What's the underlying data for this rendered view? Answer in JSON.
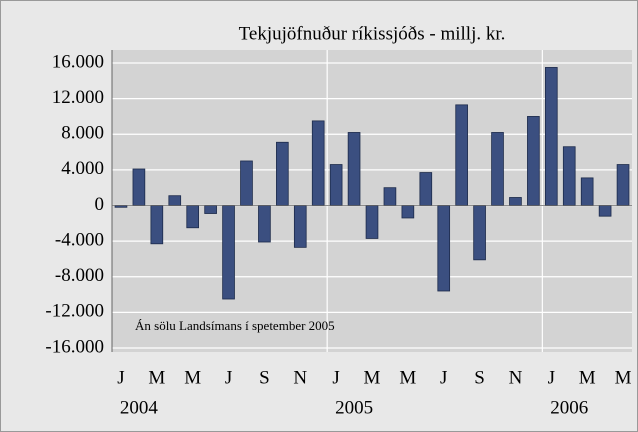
{
  "chart_data": {
    "type": "bar",
    "title": "Tekjujöfnuður ríkissjóðs - millj. kr.",
    "annotation": "Án sölu Landsímans í spetember 2005",
    "categories": [
      "J",
      null,
      "M",
      null,
      "M",
      null,
      "J",
      null,
      "S",
      null,
      "N",
      null,
      "J",
      null,
      "M",
      null,
      "M",
      null,
      "J",
      null,
      "S",
      null,
      "N",
      null,
      "J",
      null,
      "M",
      null,
      "M"
    ],
    "year_labels": [
      "2004",
      "2005",
      "2006"
    ],
    "values": [
      -200,
      4100,
      -4300,
      1100,
      -2500,
      -900,
      -10500,
      5000,
      -4100,
      7100,
      -4700,
      9500,
      4600,
      8200,
      -3700,
      2000,
      -1400,
      3700,
      -9600,
      11300,
      -6100,
      8200,
      900,
      10000,
      15500,
      6600,
      3100,
      -1200,
      4600
    ],
    "color": "#3b4f80",
    "ylim": [
      -16000,
      16000
    ],
    "yticks": [
      {
        "value": -16000,
        "label": "-16.000"
      },
      {
        "value": -12000,
        "label": "-12.000"
      },
      {
        "value": -8000,
        "label": "-8.000"
      },
      {
        "value": -4000,
        "label": "-4.000"
      },
      0,
      {
        "value": 4000,
        "label": "4.000"
      },
      {
        "value": 8000,
        "label": "8.000"
      },
      {
        "value": 12000,
        "label": "12.000"
      },
      {
        "value": 16000,
        "label": "16.000"
      }
    ],
    "grid": true
  }
}
